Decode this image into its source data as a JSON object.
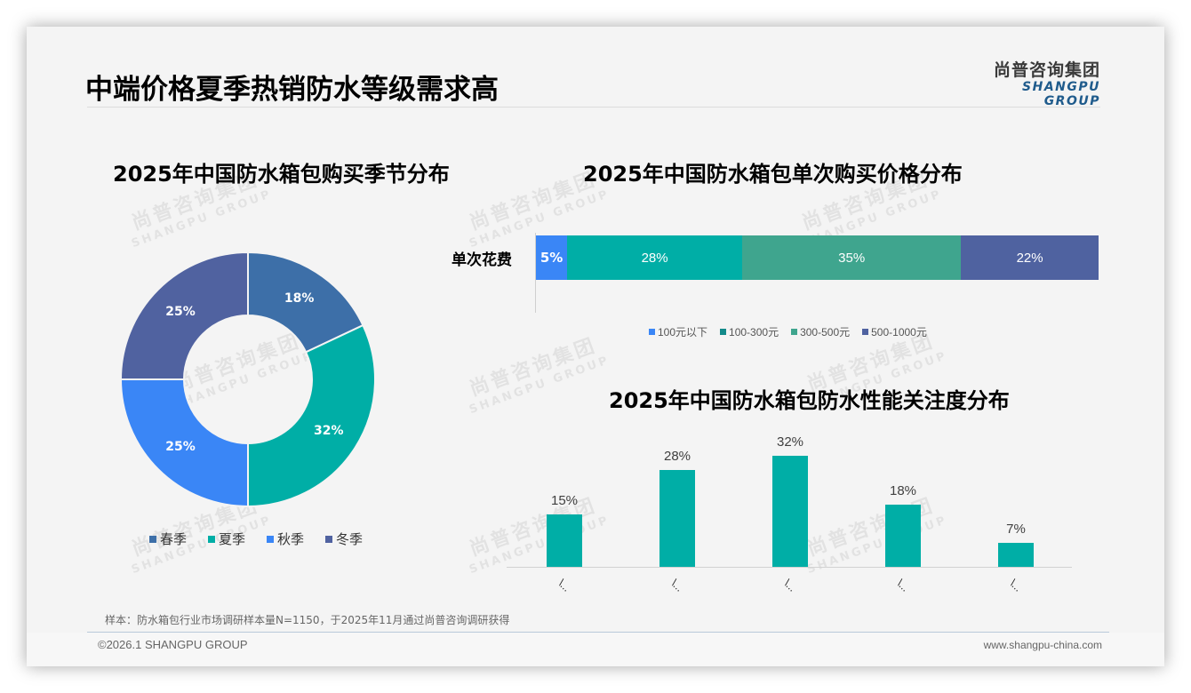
{
  "header": {
    "title": "中端价格夏季热销防水等级需求高",
    "logo_cn": "尚普咨询集团",
    "logo_en": "SHANGPU GROUP"
  },
  "watermark": {
    "cn": "尚普咨询集团",
    "en": "SHANGPU GROUP"
  },
  "colors": {
    "spring": "#3d6fa8",
    "summer": "#00aea6",
    "autumn": "#3a86f6",
    "winter": "#5062a0",
    "price_lt100": "#3a86f6",
    "price_100_300": "#00aea6",
    "price_300_500": "#3fa58e",
    "price_500_1000": "#4f62a0",
    "column": "#00aea6"
  },
  "chart_data": [
    {
      "type": "pie",
      "subtype": "donut",
      "title": "2025年中国防水箱包购买季节分布",
      "categories": [
        "春季",
        "夏季",
        "秋季",
        "冬季"
      ],
      "values": [
        18,
        32,
        25,
        25
      ],
      "labels": [
        "18%",
        "32%",
        "25%",
        "25%"
      ],
      "legend_position": "bottom"
    },
    {
      "type": "bar",
      "orientation": "horizontal",
      "stacked": true,
      "title": "2025年中国防水箱包单次购买价格分布",
      "categories": [
        "单次花费"
      ],
      "series": [
        {
          "name": "100元以下",
          "values": [
            5
          ],
          "label": "5%"
        },
        {
          "name": "100-300元",
          "values": [
            28
          ],
          "label": "28%"
        },
        {
          "name": "300-500元",
          "values": [
            35
          ],
          "label": "35%"
        },
        {
          "name": "500-1000元",
          "values": [
            22
          ],
          "label": "22%"
        }
      ],
      "legend_position": "bottom"
    },
    {
      "type": "bar",
      "title": "2025年中国防水箱包防水性能关注度分布",
      "categories": [
        "\\...",
        "\\...",
        "\\...",
        "\\...",
        "\\..."
      ],
      "values": [
        15,
        28,
        32,
        18,
        7
      ],
      "labels": [
        "15%",
        "28%",
        "32%",
        "18%",
        "7%"
      ],
      "xlabel": "",
      "ylabel": "",
      "grid": false
    }
  ],
  "footer": {
    "source": "样本：防水箱包行业市场调研样本量N=1150，于2025年11月通过尚普咨询调研获得",
    "copyright": "©2026.1 SHANGPU GROUP",
    "website": "www.shangpu-china.com"
  }
}
